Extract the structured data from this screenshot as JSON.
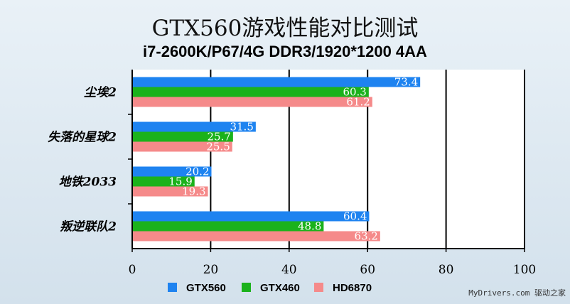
{
  "chart_data": {
    "type": "bar",
    "orientation": "horizontal",
    "title": "GTX560游戏性能对比测试",
    "subtitle": "i7-2600K/P67/4G DDR3/1920*1200 4AA",
    "categories": [
      "尘埃2",
      "失落的星球2",
      "地铁2033",
      "叛逆联队2"
    ],
    "series": [
      {
        "name": "GTX560",
        "color": "#1e83f0",
        "values": [
          73.4,
          31.5,
          20.2,
          60.4
        ]
      },
      {
        "name": "GTX460",
        "color": "#1bb21b",
        "values": [
          60.3,
          25.7,
          15.9,
          48.8
        ]
      },
      {
        "name": "HD6870",
        "color": "#f58a8a",
        "values": [
          61.2,
          25.5,
          19.3,
          63.2
        ]
      }
    ],
    "xlim": [
      0,
      100
    ],
    "xticks": [
      0,
      20,
      40,
      60,
      80,
      100
    ],
    "grid": true,
    "legend_position": "bottom"
  },
  "watermark": "MyDrivers.com 驱动之家"
}
